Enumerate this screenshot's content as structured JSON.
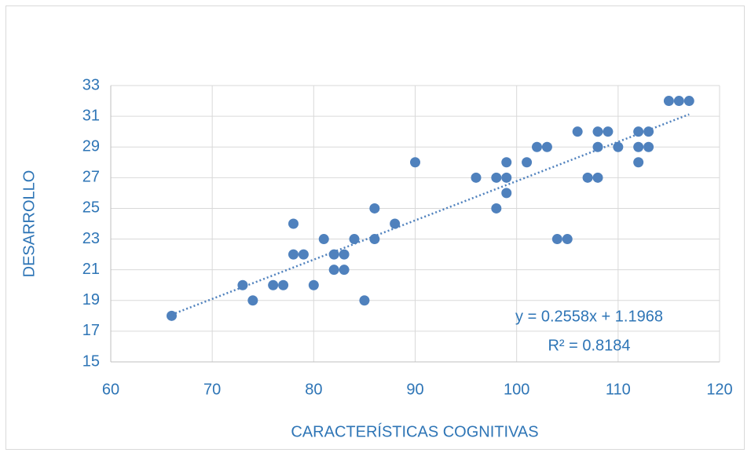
{
  "chart_data": {
    "type": "scatter",
    "xlabel": "CARACTERÍSTICAS COGNITIVAS",
    "ylabel": "DESARROLLO",
    "x": [
      66,
      73,
      74,
      76,
      77,
      78,
      78,
      79,
      80,
      81,
      82,
      82,
      83,
      83,
      84,
      85,
      86,
      86,
      88,
      90,
      96,
      98,
      98,
      99,
      99,
      99,
      101,
      102,
      103,
      104,
      105,
      106,
      107,
      108,
      108,
      108,
      109,
      110,
      112,
      112,
      112,
      113,
      113,
      115,
      116,
      117
    ],
    "y": [
      18,
      20,
      19,
      20,
      20,
      24,
      22,
      22,
      20,
      23,
      22,
      21,
      22,
      21,
      23,
      19,
      25,
      23,
      24,
      28,
      27,
      27,
      25,
      28,
      27,
      26,
      28,
      29,
      29,
      23,
      23,
      30,
      27,
      30,
      29,
      27,
      30,
      29,
      30,
      29,
      28,
      30,
      29,
      32,
      32,
      32
    ],
    "color": "#4f81bd",
    "xlim": [
      60,
      120
    ],
    "xticks": [
      60,
      70,
      80,
      90,
      100,
      110,
      120
    ],
    "ylim": [
      15,
      33
    ],
    "yticks": [
      15,
      17,
      19,
      21,
      23,
      25,
      27,
      29,
      31,
      33
    ],
    "grid": true,
    "trendline": {
      "slope": 0.2558,
      "intercept": 1.1968,
      "equation": "y = 0.2558x + 1.1968",
      "r2": "R² = 0.8184"
    }
  }
}
